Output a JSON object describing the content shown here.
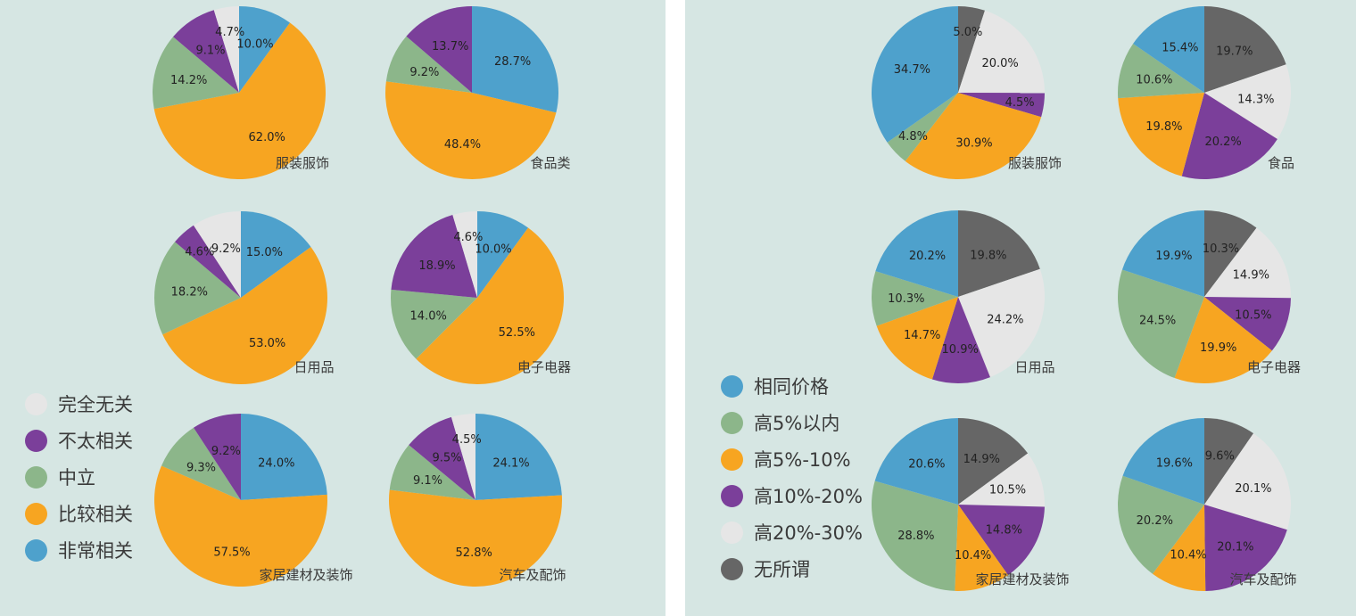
{
  "chart_data": [
    {
      "type": "pie",
      "group": "left",
      "legend": [
        {
          "name": "完全无关",
          "color": "#e6e6e6"
        },
        {
          "name": "不太相关",
          "color": "#7b3f9a"
        },
        {
          "name": "中立",
          "color": "#8cb68a"
        },
        {
          "name": "比较相关",
          "color": "#f7a521"
        },
        {
          "name": "非常相关",
          "color": "#4ea1cc"
        }
      ],
      "pies": [
        {
          "title": "服装服饰",
          "slices": [
            {
              "name": "非常相关",
              "value": 10.0,
              "label": "10.0%"
            },
            {
              "name": "比较相关",
              "value": 62.0,
              "label": "62.0%"
            },
            {
              "name": "中立",
              "value": 14.2,
              "label": "14.2%"
            },
            {
              "name": "不太相关",
              "value": 9.1,
              "label": "9.1%"
            },
            {
              "name": "完全无关",
              "value": 4.7,
              "label": "4.7%"
            }
          ]
        },
        {
          "title": "食品类",
          "slices": [
            {
              "name": "非常相关",
              "value": 28.7,
              "label": "28.7%"
            },
            {
              "name": "比较相关",
              "value": 48.4,
              "label": "48.4%"
            },
            {
              "name": "中立",
              "value": 9.2,
              "label": "9.2%"
            },
            {
              "name": "不太相关",
              "value": 13.7,
              "label": "13.7%"
            }
          ]
        },
        {
          "title": "日用品",
          "slices": [
            {
              "name": "非常相关",
              "value": 15.0,
              "label": "15.0%"
            },
            {
              "name": "比较相关",
              "value": 53.0,
              "label": "53.0%"
            },
            {
              "name": "中立",
              "value": 18.2,
              "label": "18.2%"
            },
            {
              "name": "不太相关",
              "value": 4.6,
              "label": "4.6%"
            },
            {
              "name": "完全无关",
              "value": 9.2,
              "label": "9.2%"
            }
          ]
        },
        {
          "title": "电子电器",
          "slices": [
            {
              "name": "非常相关",
              "value": 10.0,
              "label": "10.0%"
            },
            {
              "name": "比较相关",
              "value": 52.5,
              "label": "52.5%"
            },
            {
              "name": "中立",
              "value": 14.0,
              "label": "14.0%"
            },
            {
              "name": "不太相关",
              "value": 18.9,
              "label": "18.9%"
            },
            {
              "name": "完全无关",
              "value": 4.6,
              "label": "4.6%"
            }
          ]
        },
        {
          "title": "家居建材及装饰",
          "slices": [
            {
              "name": "非常相关",
              "value": 24.0,
              "label": "24.0%"
            },
            {
              "name": "比较相关",
              "value": 57.5,
              "label": "57.5%"
            },
            {
              "name": "中立",
              "value": 9.3,
              "label": "9.3%"
            },
            {
              "name": "不太相关",
              "value": 9.2,
              "label": "9.2%"
            }
          ]
        },
        {
          "title": "汽车及配饰",
          "slices": [
            {
              "name": "非常相关",
              "value": 24.1,
              "label": "24.1%"
            },
            {
              "name": "比较相关",
              "value": 52.8,
              "label": "52.8%"
            },
            {
              "name": "中立",
              "value": 9.1,
              "label": "9.1%"
            },
            {
              "name": "不太相关",
              "value": 9.5,
              "label": "9.5%"
            },
            {
              "name": "完全无关",
              "value": 4.5,
              "label": "4.5%"
            }
          ]
        }
      ]
    },
    {
      "type": "pie",
      "group": "right",
      "legend": [
        {
          "name": "相同价格",
          "color": "#4ea1cc"
        },
        {
          "name": "高5%以内",
          "color": "#8cb68a"
        },
        {
          "name": "高5%-10%",
          "color": "#f7a521"
        },
        {
          "name": "高10%-20%",
          "color": "#7b3f9a"
        },
        {
          "name": "高20%-30%",
          "color": "#e6e6e6"
        },
        {
          "name": "无所谓",
          "color": "#666666"
        }
      ],
      "pies": [
        {
          "title": "服装服饰",
          "slices": [
            {
              "name": "无所谓",
              "value": 5.0,
              "label": "5.0%"
            },
            {
              "name": "高20%-30%",
              "value": 20.0,
              "label": "20.0%"
            },
            {
              "name": "高10%-20%",
              "value": 4.5,
              "label": "4.5%"
            },
            {
              "name": "高5%-10%",
              "value": 30.9,
              "label": "30.9%"
            },
            {
              "name": "高5%以内",
              "value": 4.8,
              "label": "4.8%"
            },
            {
              "name": "相同价格",
              "value": 34.7,
              "label": "34.7%"
            }
          ]
        },
        {
          "title": "食品",
          "slices": [
            {
              "name": "无所谓",
              "value": 19.7,
              "label": "19.7%"
            },
            {
              "name": "高20%-30%",
              "value": 14.3,
              "label": "14.3%"
            },
            {
              "name": "高10%-20%",
              "value": 20.2,
              "label": "20.2%"
            },
            {
              "name": "高5%-10%",
              "value": 19.8,
              "label": "19.8%"
            },
            {
              "name": "高5%以内",
              "value": 10.6,
              "label": "10.6%"
            },
            {
              "name": "相同价格",
              "value": 15.4,
              "label": "15.4%"
            }
          ]
        },
        {
          "title": "日用品",
          "slices": [
            {
              "name": "无所谓",
              "value": 19.8,
              "label": "19.8%"
            },
            {
              "name": "高20%-30%",
              "value": 24.2,
              "label": "24.2%"
            },
            {
              "name": "高10%-20%",
              "value": 10.9,
              "label": "10.9%"
            },
            {
              "name": "高5%-10%",
              "value": 14.7,
              "label": "14.7%"
            },
            {
              "name": "高5%以内",
              "value": 10.3,
              "label": "10.3%"
            },
            {
              "name": "相同价格",
              "value": 20.2,
              "label": "20.2%"
            }
          ]
        },
        {
          "title": "电子电器",
          "slices": [
            {
              "name": "无所谓",
              "value": 10.3,
              "label": "10.3%"
            },
            {
              "name": "高20%-30%",
              "value": 14.9,
              "label": "14.9%"
            },
            {
              "name": "高10%-20%",
              "value": 10.5,
              "label": "10.5%"
            },
            {
              "name": "高5%-10%",
              "value": 19.9,
              "label": "19.9%"
            },
            {
              "name": "高5%以内",
              "value": 24.5,
              "label": "24.5%"
            },
            {
              "name": "相同价格",
              "value": 19.9,
              "label": "19.9%"
            }
          ]
        },
        {
          "title": "家居建材及装饰",
          "slices": [
            {
              "name": "无所谓",
              "value": 14.9,
              "label": "14.9%"
            },
            {
              "name": "高20%-30%",
              "value": 10.5,
              "label": "10.5%"
            },
            {
              "name": "高10%-20%",
              "value": 14.8,
              "label": "14.8%"
            },
            {
              "name": "高5%-10%",
              "value": 10.4,
              "label": "10.4%"
            },
            {
              "name": "高5%以内",
              "value": 28.8,
              "label": "28.8%"
            },
            {
              "name": "相同价格",
              "value": 20.6,
              "label": "20.6%"
            }
          ]
        },
        {
          "title": "汽车及配饰",
          "slices": [
            {
              "name": "无所谓",
              "value": 9.6,
              "label": "9.6%"
            },
            {
              "name": "高20%-30%",
              "value": 20.1,
              "label": "20.1%"
            },
            {
              "name": "高10%-20%",
              "value": 20.1,
              "label": "20.1%"
            },
            {
              "name": "高5%-10%",
              "value": 10.4,
              "label": "10.4%"
            },
            {
              "name": "高5%以内",
              "value": 20.2,
              "label": "20.2%"
            },
            {
              "name": "相同价格",
              "value": 19.6,
              "label": "19.6%"
            }
          ]
        }
      ]
    }
  ]
}
